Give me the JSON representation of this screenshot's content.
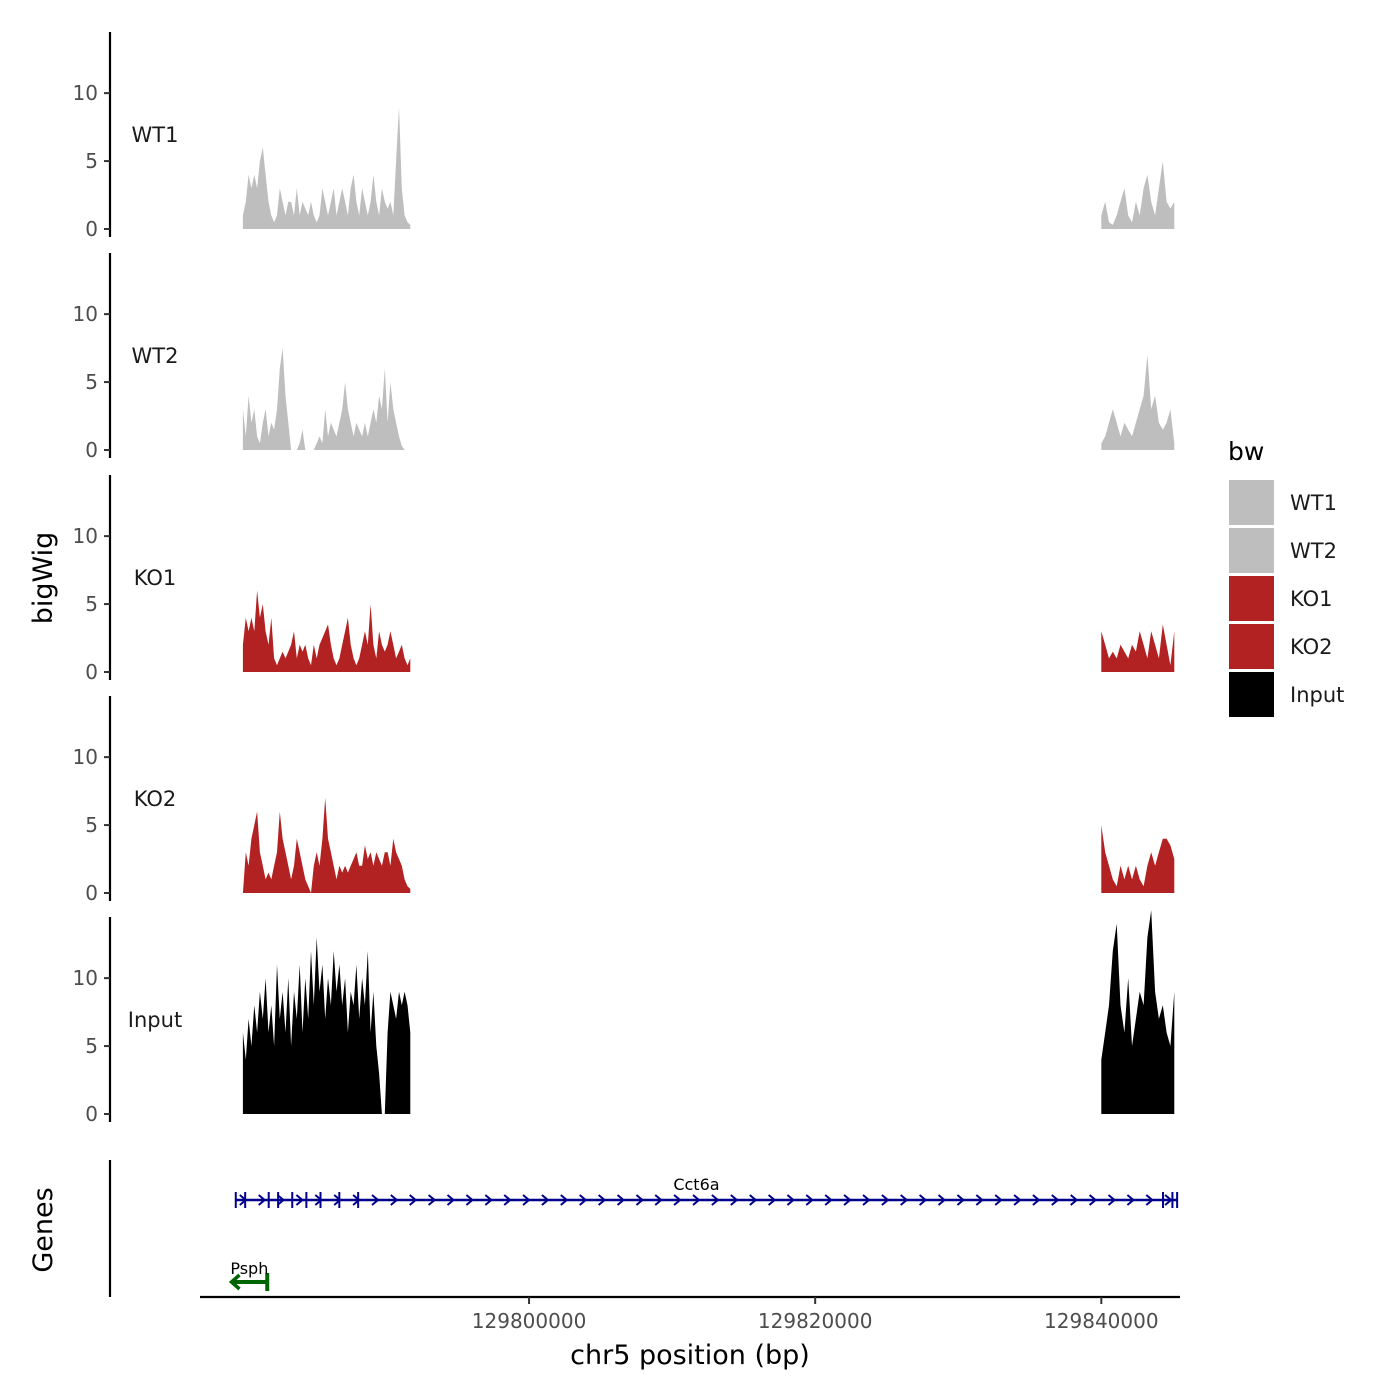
{
  "chart_data": {
    "type": "area",
    "title": "",
    "xlabel": "chr5 position (bp)",
    "ylabel": "bigWig",
    "genes_label": "Genes",
    "xlim": [
      129777000,
      129845500
    ],
    "x_ticks": [
      129800000,
      129820000,
      129840000
    ],
    "x_tick_labels": [
      "129800000",
      "129820000",
      "129840000"
    ],
    "ylim": [
      0,
      14.5
    ],
    "y_ticks": [
      0,
      5,
      10
    ],
    "y_tick_labels": [
      "0",
      "5",
      "10"
    ],
    "legend": {
      "title": "bw",
      "position": "right",
      "entries": [
        {
          "label": "WT1",
          "color": "#bebebe"
        },
        {
          "label": "WT2",
          "color": "#bebebe"
        },
        {
          "label": "KO1",
          "color": "#b22222"
        },
        {
          "label": "KO2",
          "color": "#b22222"
        },
        {
          "label": "Input",
          "color": "#000000"
        }
      ]
    },
    "regions": [
      {
        "start": 129780000,
        "end": 129791700
      },
      {
        "start": 129840000,
        "end": 129845100
      }
    ],
    "series": [
      {
        "name": "WT1",
        "color": "#bebebe",
        "regions": [
          [
            1,
            2,
            4,
            3,
            4,
            3,
            5,
            6,
            4,
            2,
            1,
            0.5,
            1,
            3,
            2,
            1,
            2,
            2,
            1,
            3,
            1,
            2,
            1.5,
            1,
            2,
            1,
            0.5,
            1,
            3,
            2,
            1,
            2,
            3,
            1,
            2,
            3,
            2,
            1,
            3,
            4,
            2,
            1,
            3,
            2,
            1,
            2,
            4,
            2,
            1,
            3,
            2,
            1.5,
            2,
            1,
            5,
            9,
            3,
            1,
            0.5,
            0.3
          ],
          [
            1,
            2,
            0.5,
            0.3,
            1,
            2,
            3,
            1,
            0.5,
            2,
            1,
            3,
            4,
            2,
            1,
            3,
            5,
            2,
            1.5,
            2
          ]
        ]
      },
      {
        "name": "WT2",
        "color": "#bebebe",
        "regions": [
          [
            3,
            1,
            4,
            2,
            3,
            1,
            0.5,
            2,
            3,
            1,
            2,
            1.5,
            3,
            6,
            7.5,
            4,
            2,
            0,
            0,
            0,
            0.5,
            1.5,
            0,
            0,
            0,
            0,
            0.5,
            1,
            0.5,
            3,
            1,
            2,
            1.5,
            1,
            2,
            3,
            5,
            3,
            2,
            1,
            2,
            1.5,
            1,
            2,
            1,
            2,
            3,
            2,
            4,
            3,
            6,
            2,
            5,
            3,
            2,
            1,
            0.3,
            0,
            0,
            0
          ],
          [
            0.5,
            1,
            2,
            3,
            2,
            1,
            2,
            1.5,
            1,
            2,
            3,
            4,
            7,
            3,
            4,
            2,
            1.5,
            2,
            3,
            0.5
          ]
        ]
      },
      {
        "name": "KO1",
        "color": "#b22222",
        "regions": [
          [
            2,
            4,
            3,
            4,
            3,
            6,
            4,
            5,
            3,
            2,
            4,
            1,
            0.5,
            1,
            1.5,
            1,
            1.5,
            2,
            3,
            1,
            2,
            1.5,
            2,
            1,
            0.5,
            2,
            1,
            2,
            2.5,
            3,
            3.5,
            2,
            1,
            0.5,
            1,
            2,
            3,
            4,
            2,
            1,
            0.5,
            1,
            2,
            3,
            2,
            5,
            2,
            1,
            3,
            2,
            1.5,
            2,
            3,
            2,
            1,
            1.5,
            2,
            1,
            0.5,
            1
          ],
          [
            3,
            2,
            1,
            1.5,
            1,
            2,
            1.5,
            1,
            2,
            1.5,
            3,
            2,
            1,
            3,
            2,
            1,
            3.5,
            2,
            0.5,
            3
          ]
        ]
      },
      {
        "name": "KO2",
        "color": "#b22222",
        "regions": [
          [
            0,
            3,
            2,
            4,
            5,
            6,
            3,
            2,
            1,
            1.5,
            1,
            2,
            3,
            6,
            4,
            3,
            2,
            1,
            2,
            4,
            3,
            2,
            1,
            0.5,
            0,
            2,
            3,
            2,
            4,
            7,
            4,
            3,
            2,
            1,
            2,
            1.5,
            2,
            1.5,
            2,
            2.5,
            3,
            2,
            2,
            3.5,
            2.5,
            3,
            2,
            3,
            2.5,
            2,
            3,
            3,
            2,
            4,
            3,
            2.5,
            2,
            1,
            0.5,
            0.3
          ],
          [
            5,
            3,
            2,
            1,
            0.5,
            2,
            1,
            2,
            1,
            2,
            1,
            0.5,
            2,
            3,
            2,
            3,
            4,
            4,
            3.5,
            2.5
          ]
        ]
      },
      {
        "name": "Input",
        "color": "#000000",
        "regions": [
          [
            6,
            4,
            7,
            5,
            8,
            6,
            9,
            7,
            10,
            6,
            8,
            5,
            11,
            7,
            9,
            6,
            10,
            5,
            9,
            7,
            11,
            6,
            10,
            7,
            12,
            8,
            13,
            9,
            11,
            7,
            10,
            8,
            12,
            9,
            11,
            8,
            10,
            6,
            9,
            8,
            11,
            7,
            10,
            8,
            12,
            6,
            9,
            5,
            3,
            0,
            0,
            6,
            9,
            8,
            7,
            9,
            8,
            9,
            8,
            6
          ],
          [
            4,
            6,
            8,
            12,
            14,
            8,
            6,
            10,
            5,
            7,
            9,
            8,
            13,
            15,
            9,
            7,
            8,
            6,
            5,
            9
          ]
        ]
      }
    ],
    "genes": [
      {
        "name": "Cct6a",
        "strand": "+",
        "start": 129779500,
        "end": 129845300,
        "color": "#00008b"
      },
      {
        "name": "Psph",
        "strand": "-",
        "start": 129779200,
        "end": 129781700,
        "color": "#006400"
      }
    ]
  }
}
